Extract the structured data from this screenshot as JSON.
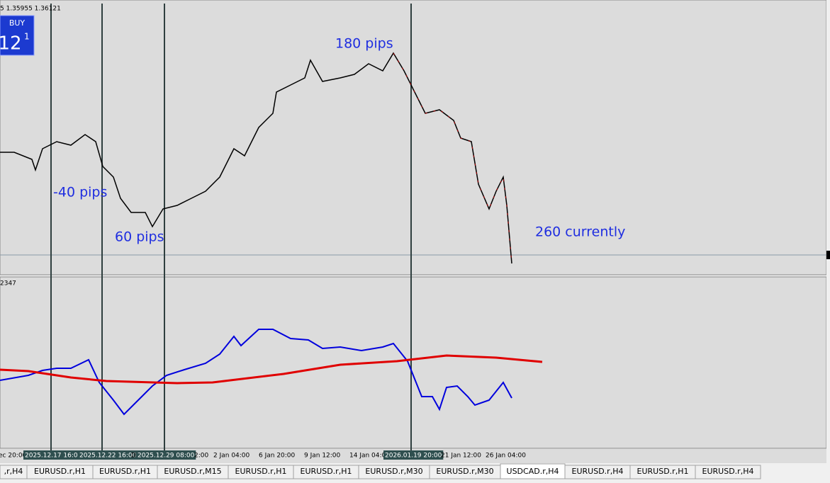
{
  "header": {
    "price_line": "5 1.35955 1.36121",
    "buy_label": "BUY",
    "buy_price": "12",
    "buy_price_sup": "1"
  },
  "annotations": [
    "180 pips",
    "-40 pips",
    "60 pips",
    "260 currently"
  ],
  "indicator_label": "2347",
  "x_axis_labels": [
    "ec 20:00",
    "2025.12.17 16:00",
    "2025.12.22 16:00",
    "D",
    "2025.12.29 08:00",
    "2:00",
    "2 Jan 04:00",
    "6 Jan 20:00",
    "9 Jan 12:00",
    "14 Jan 04:00",
    "2026.01.19 20:00",
    "21 Jan 12:00",
    "26 Jan 04:00"
  ],
  "tabs": [
    ",r,H4",
    "EURUSD.r,H1",
    "EURUSD.r,H1",
    "EURUSD.r,M15",
    "EURUSD.r,H1",
    "EURUSD.r,H1",
    "EURUSD.r,M30",
    "EURUSD.r,M30",
    "USDCAD.r,H4",
    "EURUSD.r,H4",
    "EURUSD.r,H1",
    "EURUSD.r,H4"
  ],
  "active_tab": 8
}
